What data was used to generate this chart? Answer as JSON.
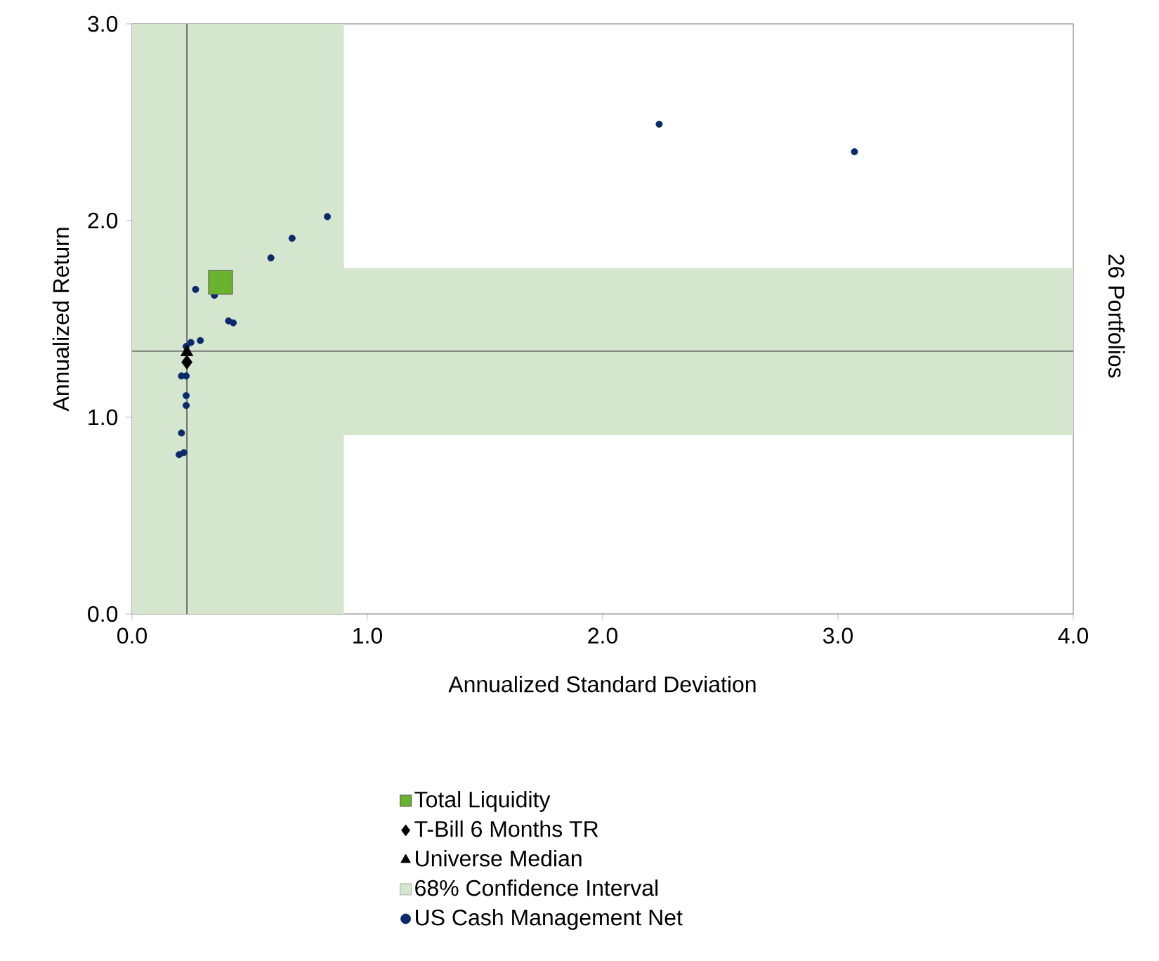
{
  "chart_data": {
    "type": "scatter",
    "xlabel": "Annualized Standard Deviation",
    "ylabel": "Annualized Return",
    "annotations": [
      "26 Portfolios"
    ],
    "xlim": [
      0,
      4
    ],
    "ylim": [
      0,
      3
    ],
    "xticks": [
      {
        "value": 0,
        "label": "0.0"
      },
      {
        "value": 1,
        "label": "1.0"
      },
      {
        "value": 2,
        "label": "2.0"
      },
      {
        "value": 3,
        "label": "3.0"
      },
      {
        "value": 4,
        "label": "4.0"
      }
    ],
    "yticks": [
      {
        "value": 0,
        "label": "0.0"
      },
      {
        "value": 1,
        "label": "1.0"
      },
      {
        "value": 2,
        "label": "2.0"
      },
      {
        "value": 3,
        "label": "3.0"
      }
    ],
    "legend": "bottom",
    "grid": false,
    "bands": [
      {
        "axis": "x",
        "from": 0,
        "to": 0.9,
        "label": "68% Confidence Interval",
        "color": "#d5e6cf"
      },
      {
        "axis": "y",
        "from": 0.91,
        "to": 1.76,
        "color": "#d5e6cf"
      }
    ],
    "ref_lines": [
      {
        "axis": "x",
        "value": 0.233,
        "color": "#404040"
      },
      {
        "axis": "y",
        "value": 1.336,
        "color": "#404040"
      }
    ],
    "series": [
      {
        "name": "US Cash Management Net",
        "color": "#0a2a6b",
        "marker": "circle",
        "x": [
          2.24,
          3.07,
          0.83,
          0.68,
          0.59,
          0.27,
          0.35,
          0.41,
          0.43,
          0.25,
          0.29,
          0.23,
          0.21,
          0.23,
          0.23,
          0.23,
          0.21,
          0.2,
          0.22
        ],
        "values": [
          2.49,
          2.35,
          2.02,
          1.91,
          1.81,
          1.65,
          1.62,
          1.49,
          1.48,
          1.38,
          1.39,
          1.36,
          1.21,
          1.21,
          1.11,
          1.06,
          0.92,
          0.81,
          0.82
        ]
      },
      {
        "name": "Universe Median",
        "color": "#000000",
        "marker": "triangle",
        "x": [
          0.233
        ],
        "values": [
          1.33
        ]
      },
      {
        "name": "T-Bill 6 Months TR",
        "color": "#000000",
        "marker": "diamond",
        "x": [
          0.233
        ],
        "values": [
          1.28
        ]
      },
      {
        "name": "Total Liquidity",
        "color": "#6ab42d",
        "marker": "square",
        "x": [
          0.376
        ],
        "values": [
          1.686
        ]
      }
    ]
  }
}
